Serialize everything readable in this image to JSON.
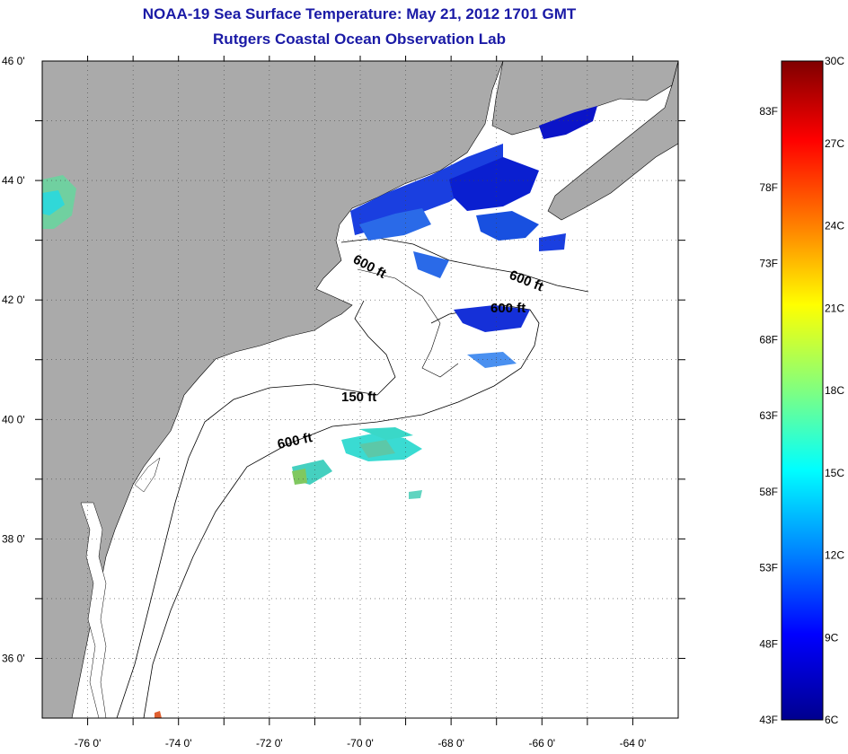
{
  "header": {
    "title": "NOAA-19 Sea Surface Temperature:  May 21, 2012 1701 GMT",
    "subtitle": "Rutgers Coastal Ocean Observation Lab"
  },
  "map": {
    "lat_range": [
      35,
      46
    ],
    "lon_range": [
      -77,
      -63
    ],
    "lat_ticks": [
      "46 0'",
      "44 0'",
      "42 0'",
      "40 0'",
      "38 0'",
      "36 0'"
    ],
    "lon_ticks": [
      "-76 0'",
      "-74 0'",
      "-72 0'",
      "-70 0'",
      "-68 0'",
      "-66 0'",
      "-64 0'"
    ],
    "contour_labels": [
      "600 ft",
      "600 ft",
      "600 ft",
      "150 ft",
      "600 ft"
    ],
    "colors": {
      "land": "#aaaaaa",
      "ocean": "#ffffff",
      "grid": "#555555"
    }
  },
  "colorbar": {
    "celsius": [
      "30C",
      "27C",
      "24C",
      "21C",
      "18C",
      "15C",
      "12C",
      "9C",
      "6C"
    ],
    "fahrenheit": [
      "83F",
      "78F",
      "73F",
      "68F",
      "63F",
      "58F",
      "53F",
      "48F",
      "43F"
    ],
    "colors": [
      "#7f0000",
      "#ff0000",
      "#ff8000",
      "#ffff00",
      "#80ff80",
      "#00ffff",
      "#0080ff",
      "#0000ff",
      "#00008f"
    ]
  }
}
